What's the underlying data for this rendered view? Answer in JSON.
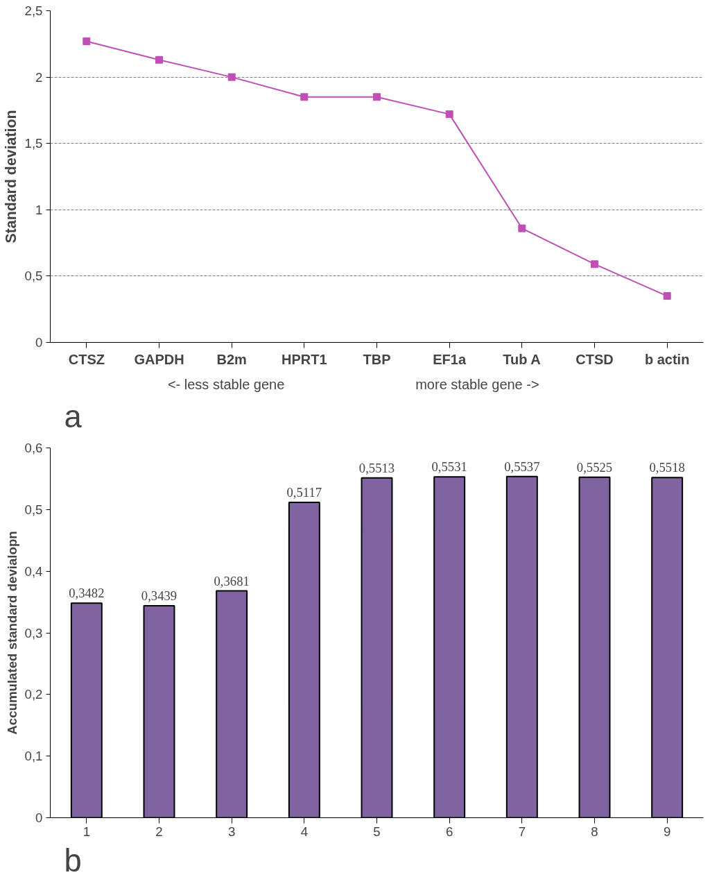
{
  "chart_data": [
    {
      "type": "line",
      "ylabel": "Standard deviation",
      "categories": [
        "CTSZ",
        "GAPDH",
        "B2m",
        "HPRT1",
        "TBP",
        "EF1a",
        "Tub A",
        "CTSD",
        "b actin"
      ],
      "series": [
        {
          "color": "#bf4fb5",
          "values": [
            2.27,
            2.13,
            2.0,
            1.85,
            1.85,
            1.72,
            0.86,
            0.59,
            0.35
          ]
        }
      ],
      "ylim": [
        0,
        2.5
      ],
      "yticks": [
        0,
        {
          "value": 0.5,
          "label": "0,5"
        },
        1,
        {
          "value": 1.5,
          "label": "1,5"
        },
        2,
        {
          "value": 2.5,
          "label": "2,5"
        }
      ],
      "grid": "y",
      "marker": "square",
      "line_style": "solid",
      "annotations": [
        "<- less stable gene",
        "more stable gene ->",
        "a"
      ]
    },
    {
      "type": "bar",
      "ylabel": "Accumulated standard devialopn",
      "categories": [
        "1",
        "2",
        "3",
        "4",
        "5",
        "6",
        "7",
        "8",
        "9"
      ],
      "series": [
        {
          "color": "#8064a2",
          "values": [
            0.3482,
            0.3439,
            0.3681,
            0.5117,
            0.5513,
            0.5531,
            0.5537,
            0.5525,
            0.5518
          ],
          "value_labels": [
            "0,3482",
            "0,3439",
            "0,3681",
            "0,5117",
            "0,5513",
            "0,5531",
            "0,5537",
            "0,5525",
            "0,5518"
          ]
        }
      ],
      "ylim": [
        0,
        0.6
      ],
      "yticks": [
        0,
        {
          "value": 0.1,
          "label": "0,1"
        },
        {
          "value": 0.2,
          "label": "0,2"
        },
        {
          "value": 0.3,
          "label": "0,3"
        },
        {
          "value": 0.4,
          "label": "0,4"
        },
        {
          "value": 0.5,
          "label": "0,5"
        },
        {
          "value": 0.6,
          "label": "0,6"
        }
      ],
      "grid": false,
      "annotations": [
        "b"
      ]
    }
  ]
}
